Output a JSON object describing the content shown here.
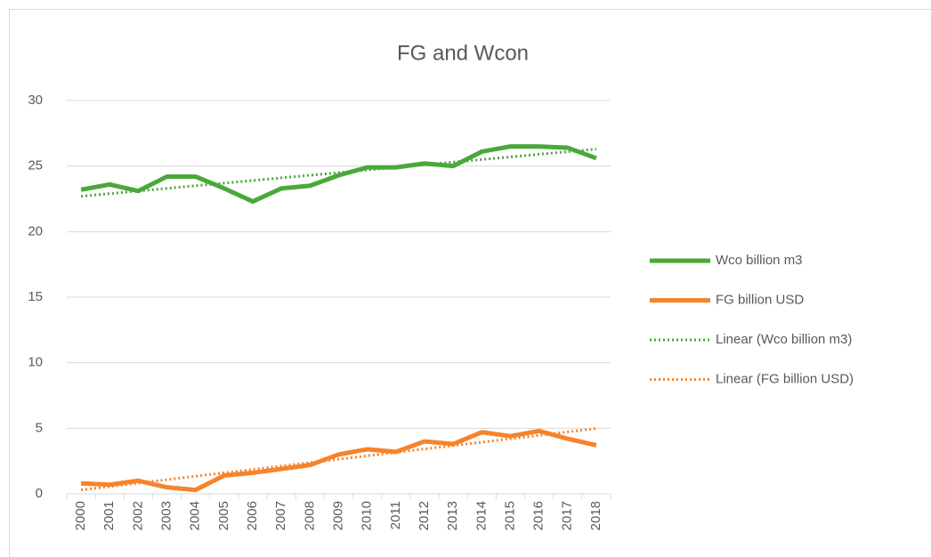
{
  "chart_data": {
    "type": "line",
    "title": "FG and Wcon",
    "categories": [
      "2000",
      "2001",
      "2002",
      "2003",
      "2004",
      "2005",
      "2006",
      "2007",
      "2008",
      "2009",
      "2010",
      "2011",
      "2012",
      "2013",
      "2014",
      "2015",
      "2016",
      "2017",
      "2018"
    ],
    "series": [
      {
        "name": "Wco billion m3",
        "color": "#4aa83a",
        "dashed": false,
        "values": [
          23.2,
          23.6,
          23.1,
          24.2,
          24.2,
          23.3,
          22.3,
          23.3,
          23.5,
          24.3,
          24.9,
          24.9,
          25.2,
          25.0,
          26.1,
          26.5,
          26.5,
          26.4,
          25.6
        ]
      },
      {
        "name": "FG billion USD",
        "color": "#f7832a",
        "dashed": false,
        "values": [
          0.8,
          0.7,
          1.0,
          0.5,
          0.3,
          1.4,
          1.6,
          1.9,
          2.2,
          3.0,
          3.4,
          3.2,
          4.0,
          3.8,
          4.7,
          4.4,
          4.8,
          4.2,
          3.7
        ]
      },
      {
        "name": "Linear (Wco billion m3)",
        "color": "#4aa83a",
        "dashed": true,
        "values": [
          22.7,
          22.9,
          23.1,
          23.3,
          23.5,
          23.7,
          23.9,
          24.1,
          24.3,
          24.5,
          24.7,
          24.9,
          25.1,
          25.3,
          25.5,
          25.7,
          25.9,
          26.1,
          26.3
        ]
      },
      {
        "name": "Linear (FG billion USD)",
        "color": "#f7832a",
        "dashed": true,
        "values": [
          0.3,
          0.56,
          0.82,
          1.08,
          1.34,
          1.6,
          1.86,
          2.12,
          2.38,
          2.64,
          2.9,
          3.16,
          3.42,
          3.68,
          3.94,
          4.2,
          4.46,
          4.72,
          4.98
        ]
      }
    ],
    "ylim": [
      0,
      30
    ],
    "yticks": [
      0,
      5,
      10,
      15,
      20,
      25,
      30
    ],
    "grid": true,
    "legend": "right"
  }
}
